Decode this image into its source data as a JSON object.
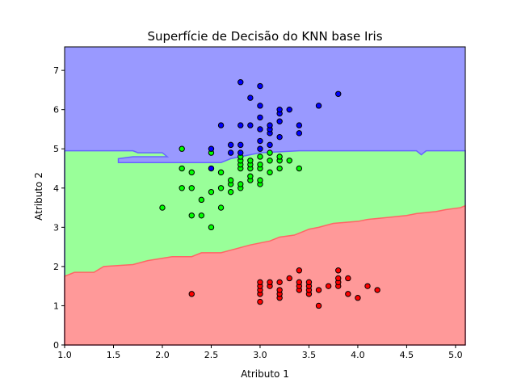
{
  "chart_data": {
    "type": "scatter",
    "title": "Superfície de Decisão do KNN base Iris",
    "xlabel": "Atributo 1",
    "ylabel": "Atributo 2",
    "xlim": [
      1.0,
      5.1
    ],
    "ylim": [
      0,
      7.6
    ],
    "xticks": [
      1.0,
      1.5,
      2.0,
      2.5,
      3.0,
      3.5,
      4.0,
      4.5,
      5.0
    ],
    "xtick_labels": [
      "1.0",
      "1.5",
      "2.0",
      "2.5",
      "3.0",
      "3.5",
      "4.0",
      "4.5",
      "5.0"
    ],
    "yticks": [
      0,
      1,
      2,
      3,
      4,
      5,
      6,
      7
    ],
    "ytick_labels": [
      "0",
      "1",
      "2",
      "3",
      "4",
      "5",
      "6",
      "7"
    ],
    "grid": false,
    "legend": "none",
    "colors": {
      "region_red": "#ff9999",
      "region_green": "#99ff99",
      "region_blue": "#9999ff",
      "point_red": "#ff0000",
      "point_green": "#00ff00",
      "point_blue": "#0000ff",
      "contour_red": "#ff6666",
      "contour_blue": "#6666ff",
      "point_edge": "#000000"
    },
    "regions": [
      {
        "class": "red",
        "boundary_top": [
          [
            1.0,
            1.75
          ],
          [
            1.1,
            1.85
          ],
          [
            1.3,
            1.85
          ],
          [
            1.4,
            2.0
          ],
          [
            1.7,
            2.05
          ],
          [
            1.85,
            2.15
          ],
          [
            2.1,
            2.25
          ],
          [
            2.3,
            2.25
          ],
          [
            2.4,
            2.35
          ],
          [
            2.6,
            2.35
          ],
          [
            2.75,
            2.45
          ],
          [
            2.9,
            2.55
          ],
          [
            3.1,
            2.65
          ],
          [
            3.2,
            2.75
          ],
          [
            3.35,
            2.8
          ],
          [
            3.5,
            2.95
          ],
          [
            3.6,
            3.0
          ],
          [
            3.75,
            3.1
          ],
          [
            4.0,
            3.15
          ],
          [
            4.1,
            3.2
          ],
          [
            4.3,
            3.25
          ],
          [
            4.5,
            3.3
          ],
          [
            4.6,
            3.35
          ],
          [
            4.8,
            3.4
          ],
          [
            4.9,
            3.45
          ],
          [
            5.05,
            3.5
          ],
          [
            5.1,
            3.55
          ]
        ]
      },
      {
        "class": "blue",
        "boundary_bottom": [
          [
            1.0,
            4.95
          ],
          [
            1.7,
            4.95
          ],
          [
            1.75,
            4.9
          ],
          [
            2.0,
            4.9
          ],
          [
            2.05,
            4.8
          ],
          [
            1.7,
            4.8
          ],
          [
            1.55,
            4.75
          ],
          [
            1.55,
            4.65
          ],
          [
            2.6,
            4.65
          ],
          [
            2.7,
            4.75
          ],
          [
            3.0,
            4.9
          ],
          [
            3.4,
            4.95
          ],
          [
            4.6,
            4.95
          ],
          [
            4.65,
            4.85
          ],
          [
            4.7,
            4.95
          ],
          [
            5.1,
            4.95
          ]
        ]
      }
    ],
    "series": [
      {
        "color_key": "red",
        "points": [
          [
            2.3,
            1.3
          ],
          [
            3.0,
            1.1
          ],
          [
            3.0,
            1.3
          ],
          [
            3.0,
            1.4
          ],
          [
            3.0,
            1.5
          ],
          [
            3.0,
            1.6
          ],
          [
            3.1,
            1.5
          ],
          [
            3.1,
            1.6
          ],
          [
            3.2,
            1.2
          ],
          [
            3.2,
            1.3
          ],
          [
            3.2,
            1.4
          ],
          [
            3.2,
            1.6
          ],
          [
            3.3,
            1.7
          ],
          [
            3.4,
            1.4
          ],
          [
            3.4,
            1.5
          ],
          [
            3.4,
            1.6
          ],
          [
            3.4,
            1.9
          ],
          [
            3.5,
            1.3
          ],
          [
            3.5,
            1.4
          ],
          [
            3.5,
            1.5
          ],
          [
            3.5,
            1.6
          ],
          [
            3.6,
            1.0
          ],
          [
            3.6,
            1.4
          ],
          [
            3.7,
            1.5
          ],
          [
            3.8,
            1.5
          ],
          [
            3.8,
            1.6
          ],
          [
            3.8,
            1.7
          ],
          [
            3.8,
            1.9
          ],
          [
            3.9,
            1.3
          ],
          [
            3.9,
            1.7
          ],
          [
            4.0,
            1.2
          ],
          [
            4.1,
            1.5
          ],
          [
            4.2,
            1.4
          ]
        ]
      },
      {
        "color_key": "green",
        "points": [
          [
            2.0,
            3.5
          ],
          [
            2.2,
            4.0
          ],
          [
            2.2,
            4.5
          ],
          [
            2.2,
            5.0
          ],
          [
            2.3,
            3.3
          ],
          [
            2.3,
            4.0
          ],
          [
            2.3,
            4.4
          ],
          [
            2.4,
            3.3
          ],
          [
            2.4,
            3.7
          ],
          [
            2.5,
            3.0
          ],
          [
            2.5,
            3.9
          ],
          [
            2.5,
            4.9
          ],
          [
            2.6,
            3.5
          ],
          [
            2.6,
            4.0
          ],
          [
            2.6,
            4.4
          ],
          [
            2.7,
            3.9
          ],
          [
            2.7,
            4.1
          ],
          [
            2.7,
            4.2
          ],
          [
            2.8,
            4.0
          ],
          [
            2.8,
            4.1
          ],
          [
            2.8,
            4.5
          ],
          [
            2.8,
            4.6
          ],
          [
            2.8,
            4.7
          ],
          [
            2.8,
            4.8
          ],
          [
            2.9,
            4.2
          ],
          [
            2.9,
            4.3
          ],
          [
            2.9,
            4.5
          ],
          [
            2.9,
            4.6
          ],
          [
            2.9,
            4.7
          ],
          [
            3.0,
            4.1
          ],
          [
            3.0,
            4.2
          ],
          [
            3.0,
            4.5
          ],
          [
            3.0,
            4.6
          ],
          [
            3.0,
            4.8
          ],
          [
            3.1,
            4.4
          ],
          [
            3.1,
            4.7
          ],
          [
            3.1,
            4.9
          ],
          [
            3.2,
            4.5
          ],
          [
            3.2,
            4.7
          ],
          [
            3.2,
            4.8
          ],
          [
            3.3,
            4.7
          ],
          [
            3.4,
            4.5
          ]
        ]
      },
      {
        "color_key": "blue",
        "points": [
          [
            2.5,
            4.5
          ],
          [
            2.5,
            5.0
          ],
          [
            2.6,
            5.6
          ],
          [
            2.7,
            4.9
          ],
          [
            2.7,
            5.1
          ],
          [
            2.8,
            4.9
          ],
          [
            2.8,
            5.1
          ],
          [
            2.8,
            5.6
          ],
          [
            2.8,
            6.7
          ],
          [
            2.9,
            5.6
          ],
          [
            2.9,
            6.3
          ],
          [
            3.0,
            5.0
          ],
          [
            3.0,
            5.2
          ],
          [
            3.0,
            5.5
          ],
          [
            3.0,
            5.8
          ],
          [
            3.0,
            6.1
          ],
          [
            3.0,
            6.6
          ],
          [
            3.1,
            5.1
          ],
          [
            3.1,
            5.4
          ],
          [
            3.1,
            5.5
          ],
          [
            3.1,
            5.6
          ],
          [
            3.2,
            5.3
          ],
          [
            3.2,
            5.7
          ],
          [
            3.2,
            5.9
          ],
          [
            3.2,
            6.0
          ],
          [
            3.3,
            6.0
          ],
          [
            3.4,
            5.4
          ],
          [
            3.4,
            5.6
          ],
          [
            3.6,
            6.1
          ],
          [
            3.8,
            6.4
          ]
        ]
      }
    ]
  }
}
